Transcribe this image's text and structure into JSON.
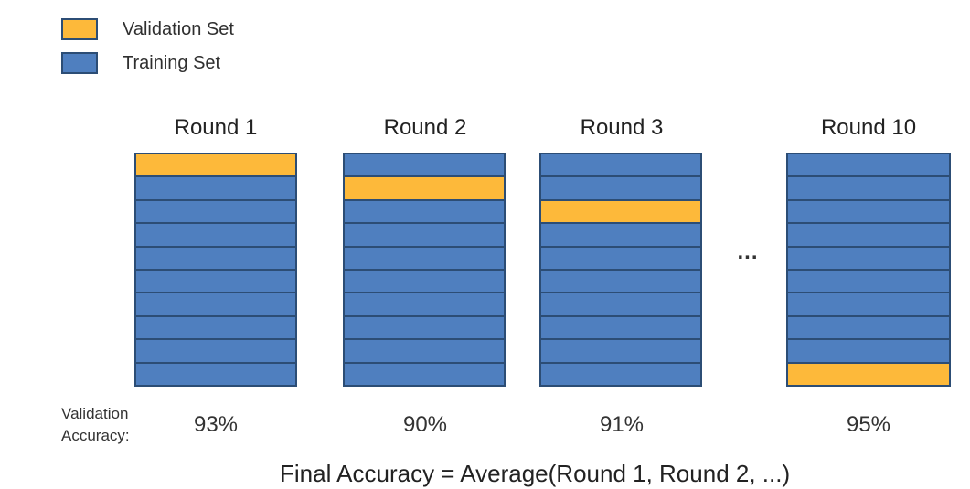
{
  "legend": {
    "validation_label": "Validation Set",
    "training_label": "Training Set",
    "validation_color": "#fdb93a",
    "training_color": "#4f7fbf"
  },
  "rounds": [
    {
      "title": "Round 1",
      "accuracy": "93%",
      "validation_fold": 1
    },
    {
      "title": "Round 2",
      "accuracy": "90%",
      "validation_fold": 2
    },
    {
      "title": "Round 3",
      "accuracy": "91%",
      "validation_fold": 3
    },
    {
      "title": "Round 10",
      "accuracy": "95%",
      "validation_fold": 10
    }
  ],
  "folds_per_round": 10,
  "ellipsis": "...",
  "accuracy_label_line1": "Validation",
  "accuracy_label_line2": "Accuracy:",
  "final_formula": "Final Accuracy  =  Average(Round 1, Round 2, ...)"
}
